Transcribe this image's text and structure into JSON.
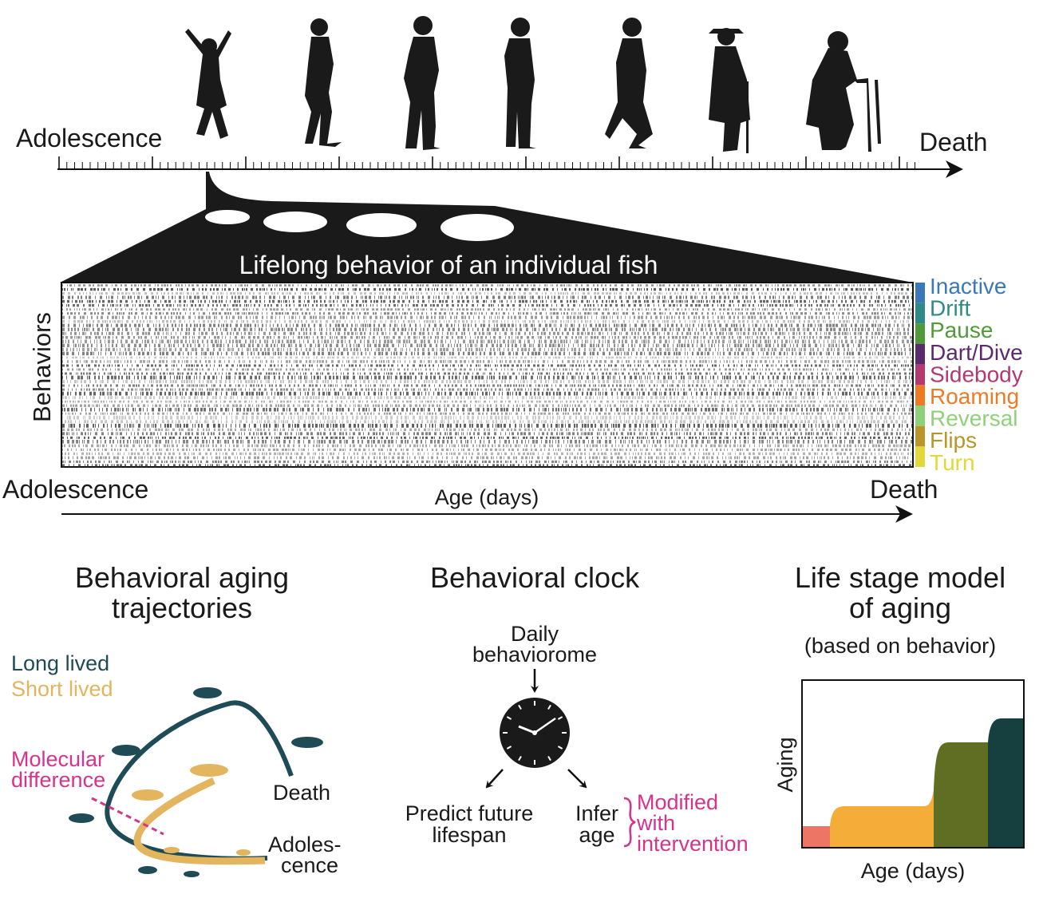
{
  "timeline": {
    "start_label": "Adolescence",
    "end_label": "Death"
  },
  "heatmap": {
    "title": "Lifelong behavior of an individual fish",
    "y_label": "Behaviors",
    "behaviors": [
      {
        "label": "Inactive",
        "color": "#3a78b8"
      },
      {
        "label": "Drift",
        "color": "#2e8a86"
      },
      {
        "label": "Pause",
        "color": "#4f9b3a"
      },
      {
        "label": "Dart/Dive",
        "color": "#5b2a6e"
      },
      {
        "label": "Sidebody",
        "color": "#b5386e"
      },
      {
        "label": "Roaming",
        "color": "#ee7a24"
      },
      {
        "label": "Reversal",
        "color": "#8fd17a"
      },
      {
        "label": "Flips",
        "color": "#b8962a"
      },
      {
        "label": "Turn",
        "color": "#e2d83a"
      }
    ],
    "x_start": "Adolescence",
    "x_label": "Age (days)",
    "x_end": "Death"
  },
  "trajectories": {
    "title": [
      "Behavioral aging",
      "trajectories"
    ],
    "legend": [
      {
        "label": "Long lived",
        "color": "#1f4b56"
      },
      {
        "label": "Short lived",
        "color": "#e2b55e"
      }
    ],
    "molecular": [
      "Molecular",
      "difference"
    ],
    "death": "Death",
    "adolescence": [
      "Adoles-",
      "cence"
    ]
  },
  "clock": {
    "title": "Behavioral clock",
    "input": [
      "Daily",
      "behaviorome"
    ],
    "predict": [
      "Predict future",
      "lifespan"
    ],
    "infer": [
      "Infer",
      "age"
    ],
    "modified": [
      "Modified",
      "with",
      "intervention"
    ]
  },
  "life_stage": {
    "title": [
      "Life stage model",
      "of aging"
    ],
    "subtitle": "(based on behavior)",
    "y_label": "Aging",
    "x_label": "Age (days)"
  }
}
